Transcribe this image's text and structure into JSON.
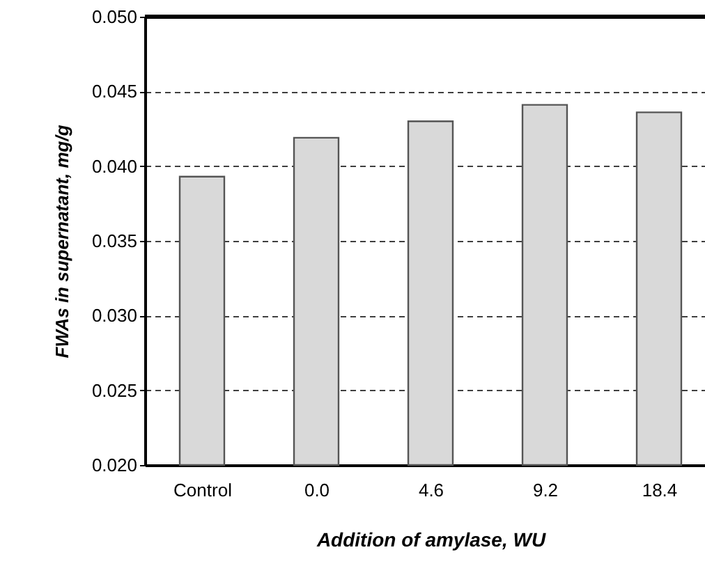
{
  "chart_data": {
    "type": "bar",
    "xlabel": "Addition of amylase, WU",
    "ylabel": "FWAs in supernatant, mg/g",
    "categories": [
      "Control",
      "0.0",
      "4.6",
      "9.2",
      "18.4"
    ],
    "values": [
      0.0393,
      0.0419,
      0.043,
      0.0441,
      0.0436
    ],
    "color": "#d9d9d9",
    "ylim": [
      0.02,
      0.05
    ],
    "yticks": [
      {
        "value": 0.02,
        "label": "0.020"
      },
      {
        "value": 0.025,
        "label": "0.025"
      },
      {
        "value": 0.03,
        "label": "0.030"
      },
      {
        "value": 0.035,
        "label": "0.035"
      },
      {
        "value": 0.04,
        "label": "0.040"
      },
      {
        "value": 0.045,
        "label": "0.045"
      },
      {
        "value": 0.05,
        "label": "0.050"
      }
    ],
    "grid": "y"
  }
}
